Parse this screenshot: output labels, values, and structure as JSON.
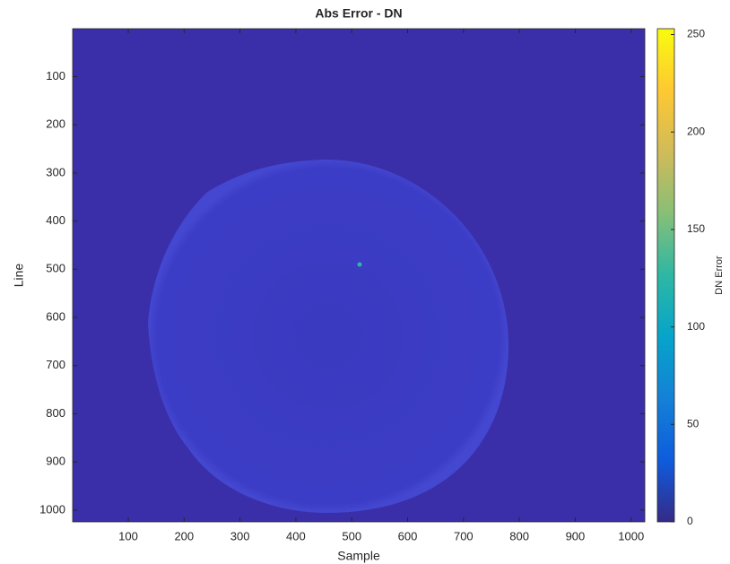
{
  "chart_data": {
    "type": "heatmap",
    "title": "Abs Error - DN",
    "xlabel": "Sample",
    "ylabel": "Line",
    "xlim": [
      0.5,
      1024.5
    ],
    "xticks": [
      100,
      200,
      300,
      400,
      500,
      600,
      700,
      800,
      900,
      1000
    ],
    "ylim": [
      1024.5,
      0.5
    ],
    "yticks": [
      100,
      200,
      300,
      400,
      500,
      600,
      700,
      800,
      900,
      1000
    ],
    "colorbar": {
      "label": "DN Error",
      "lim": [
        0,
        253
      ],
      "ticks": [
        0,
        50,
        100,
        150,
        200,
        250
      ],
      "colormap": [
        "#352a87",
        "#0f5cdd",
        "#1481d6",
        "#06a4ca",
        "#2eb7a4",
        "#87bf77",
        "#d1bb59",
        "#fec832",
        "#f9fb0e"
      ]
    }
  }
}
